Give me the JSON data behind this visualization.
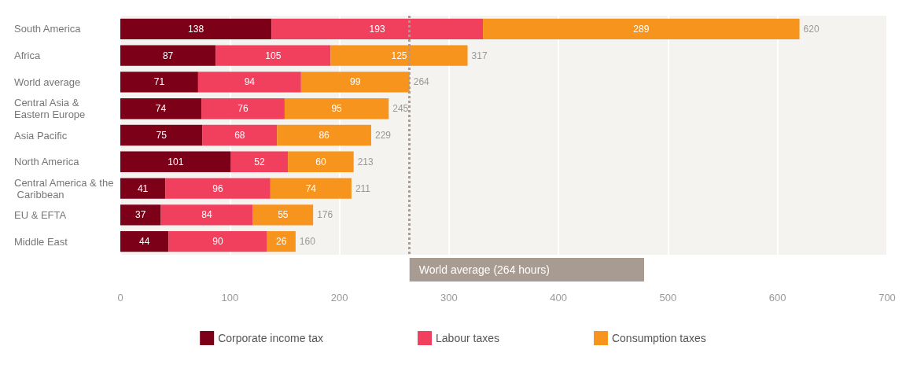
{
  "chart_data": {
    "type": "bar",
    "orientation": "horizontal",
    "stacked": true,
    "categories": [
      "South America",
      "Africa",
      "World average",
      "Central Asia & Eastern Europe",
      "Asia Pacific",
      "North America",
      "Central America & the Caribbean",
      "EU & EFTA",
      "Middle East"
    ],
    "series": [
      {
        "name": "Corporate income tax",
        "color": "#7d0019",
        "values": [
          138,
          87,
          71,
          74,
          75,
          101,
          41,
          37,
          44
        ]
      },
      {
        "name": "Labour taxes",
        "color": "#f0405e",
        "values": [
          193,
          105,
          94,
          76,
          68,
          52,
          96,
          84,
          90
        ]
      },
      {
        "name": "Consumption taxes",
        "color": "#f7941d",
        "values": [
          289,
          125,
          99,
          95,
          86,
          60,
          74,
          55,
          26
        ]
      }
    ],
    "data_labels": true,
    "totals": [
      "620",
      "317",
      "264",
      "245",
      "229",
      "213",
      "211",
      "176",
      "160"
    ],
    "xlim": [
      0,
      700
    ],
    "xticks": [
      0,
      100,
      200,
      300,
      400,
      500,
      600,
      700
    ],
    "grid": "x",
    "legend": "bottom",
    "ref_lines": [
      {
        "axis": "x",
        "value": 264,
        "label": "World average (264 hours)",
        "color": "#a89b91",
        "line_style": "dotted"
      }
    ]
  }
}
